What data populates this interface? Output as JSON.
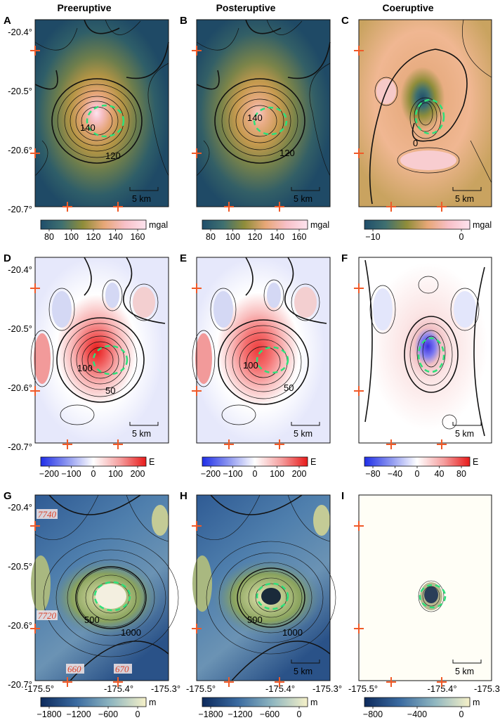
{
  "columns": [
    "Preeruptive",
    "Posteruptive",
    "Coeruptive"
  ],
  "latitude_ticks": [
    "-20.4°",
    "-20.5°",
    "-20.6°",
    "-20.7°"
  ],
  "longitude_ticks": [
    "-175.5°",
    "-175.4°",
    "-175.3°"
  ],
  "scale_bar": "5 km",
  "panels": [
    {
      "id": "A",
      "kind": "gravity",
      "contours": [
        "140",
        "120"
      ]
    },
    {
      "id": "B",
      "kind": "gravity",
      "contours": [
        "140",
        "120"
      ]
    },
    {
      "id": "C",
      "kind": "gravity-diff",
      "contours": [
        "0"
      ]
    },
    {
      "id": "D",
      "kind": "gradient",
      "contours": [
        "100",
        "50"
      ]
    },
    {
      "id": "E",
      "kind": "gradient",
      "contours": [
        "100",
        "50"
      ]
    },
    {
      "id": "F",
      "kind": "gradient-diff",
      "contours": []
    },
    {
      "id": "G",
      "kind": "bathymetry",
      "contours": [
        "500",
        "1000"
      ],
      "annotations": [
        "7740",
        "7720",
        "660",
        "670"
      ]
    },
    {
      "id": "H",
      "kind": "bathymetry",
      "contours": [
        "500",
        "1000"
      ],
      "annotations": []
    },
    {
      "id": "I",
      "kind": "bathymetry-diff",
      "contours": [],
      "annotations": []
    }
  ],
  "colorbars": [
    {
      "panel": "A",
      "unit": "mgal",
      "ticks": [
        "80",
        "100",
        "120",
        "140",
        "160"
      ],
      "colors": [
        "#1f4e6b",
        "#3f7070",
        "#8f8d3a",
        "#e7a777",
        "#f8c0c8",
        "#fde3ee"
      ]
    },
    {
      "panel": "B",
      "unit": "mgal",
      "ticks": [
        "80",
        "100",
        "120",
        "140",
        "160"
      ],
      "colors": [
        "#1f4e6b",
        "#3f7070",
        "#8f8d3a",
        "#e7a777",
        "#f8c0c8",
        "#fde3ee"
      ]
    },
    {
      "panel": "C",
      "unit": "mgal",
      "ticks": [
        "−10",
        "0"
      ],
      "colors": [
        "#1f4e6b",
        "#3f7070",
        "#8f8d3a",
        "#e7a777",
        "#f8c0c8",
        "#fde3ee"
      ]
    },
    {
      "panel": "D",
      "unit": "E",
      "ticks": [
        "−200",
        "−100",
        "0",
        "100",
        "200"
      ],
      "colors": [
        "#1f2ee8",
        "#8c96f0",
        "#ffffff",
        "#f5a0a0",
        "#e81a1a"
      ]
    },
    {
      "panel": "E",
      "unit": "E",
      "ticks": [
        "−200",
        "−100",
        "0",
        "100",
        "200"
      ],
      "colors": [
        "#1f2ee8",
        "#8c96f0",
        "#ffffff",
        "#f5a0a0",
        "#e81a1a"
      ]
    },
    {
      "panel": "F",
      "unit": "E",
      "ticks": [
        "−80",
        "−40",
        "0",
        "40",
        "80"
      ],
      "colors": [
        "#1f2ee8",
        "#8c96f0",
        "#ffffff",
        "#f5a0a0",
        "#e81a1a"
      ]
    },
    {
      "panel": "G",
      "unit": "m",
      "ticks": [
        "−1800",
        "−1200",
        "−600",
        "0"
      ],
      "colors": [
        "#0d2a5c",
        "#3a6aa0",
        "#8fb6c0",
        "#f6f1c8"
      ]
    },
    {
      "panel": "H",
      "unit": "m",
      "ticks": [
        "−1800",
        "−1200",
        "−600",
        "0"
      ],
      "colors": [
        "#0d2a5c",
        "#3a6aa0",
        "#8fb6c0",
        "#f6f1c8"
      ]
    },
    {
      "panel": "I",
      "unit": "m",
      "ticks": [
        "−800",
        "−400",
        "0"
      ],
      "colors": [
        "#0d2a5c",
        "#3a6aa0",
        "#8fb6c0",
        "#f6f1c8"
      ]
    }
  ]
}
